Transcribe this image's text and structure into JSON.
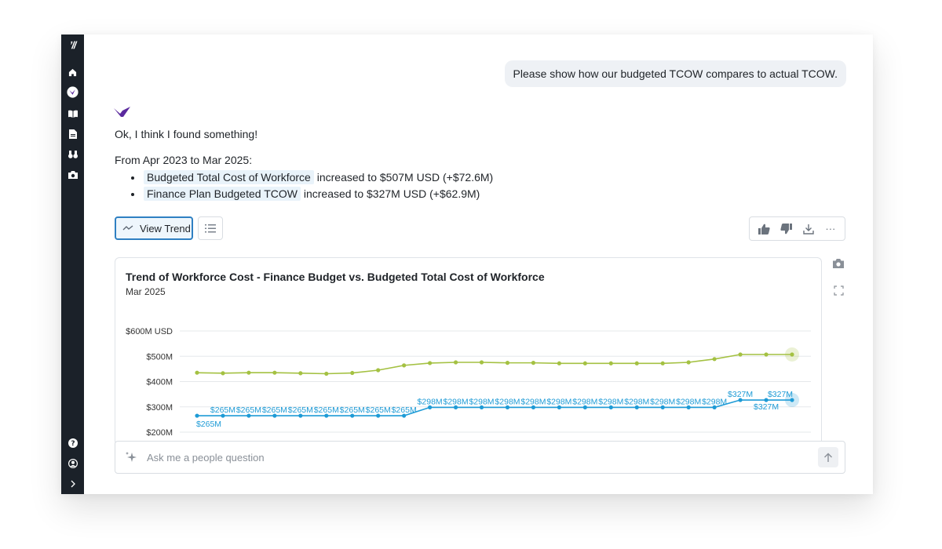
{
  "app": {
    "logo_text": "ʼ//"
  },
  "sidebar": {
    "top_icons": [
      "home-icon",
      "assistant-icon",
      "book-icon",
      "document-icon",
      "binoculars-icon",
      "camera-icon"
    ],
    "bottom_icons": [
      "help-icon",
      "profile-icon",
      "expand-icon"
    ]
  },
  "conversation": {
    "user_message": "Please show how our budgeted TCOW compares to actual TCOW.",
    "bot_intro": "Ok, I think I found something!",
    "date_range": "From Apr 2023 to Mar 2025:",
    "bullets": [
      {
        "metric": "Budgeted Total Cost of Workforce",
        "change": "increased to $507M USD (+$72.6M)"
      },
      {
        "metric": "Finance Plan Budgeted TCOW",
        "change": "increased to $327M USD (+$62.9M)"
      }
    ]
  },
  "actions": {
    "view_trend_label": "View Trend",
    "feedback_icons": [
      "thumbs-up-icon",
      "thumbs-down-icon",
      "download-icon",
      "more-icon"
    ],
    "more_label": "···"
  },
  "chart_data": {
    "type": "line",
    "title": "Trend of Workforce Cost - Finance Budget vs. Budgeted Total Cost of Workforce",
    "subtitle": "Mar 2025",
    "y_tick_labels": [
      "$600M USD",
      "$500M",
      "$400M",
      "$300M",
      "$200M"
    ],
    "y_ticks": [
      600,
      500,
      400,
      300,
      200
    ],
    "ylim": [
      200,
      600
    ],
    "grid": true,
    "colors": {
      "budgeted_total": "#a4c142",
      "finance_plan": "#1e9bd6"
    },
    "series": [
      {
        "key": "budgeted_total",
        "values": [
          435,
          433,
          435,
          435,
          433,
          431,
          434,
          445,
          464,
          473,
          476,
          476,
          474,
          474,
          472,
          472,
          472,
          472,
          472,
          476,
          489,
          507,
          507,
          507
        ]
      },
      {
        "key": "finance_plan",
        "values": [
          265,
          265,
          265,
          265,
          265,
          265,
          265,
          265,
          265,
          298,
          298,
          298,
          298,
          298,
          298,
          298,
          298,
          298,
          298,
          298,
          298,
          327,
          327,
          327
        ],
        "labels": [
          "$265M",
          "$265M",
          "$265M",
          "$265M",
          "$265M",
          "$265M",
          "$265M",
          "$265M",
          "$265M",
          "$298M",
          "$298M",
          "$298M",
          "$298M",
          "$298M",
          "$298M",
          "$298M",
          "$298M",
          "$298M",
          "$298M",
          "$298M",
          "$298M",
          "$327M",
          "$327M",
          "$327M"
        ]
      }
    ]
  },
  "side_tools": [
    "camera-icon",
    "fullscreen-icon"
  ],
  "ask": {
    "placeholder": "Ask me a people question"
  }
}
